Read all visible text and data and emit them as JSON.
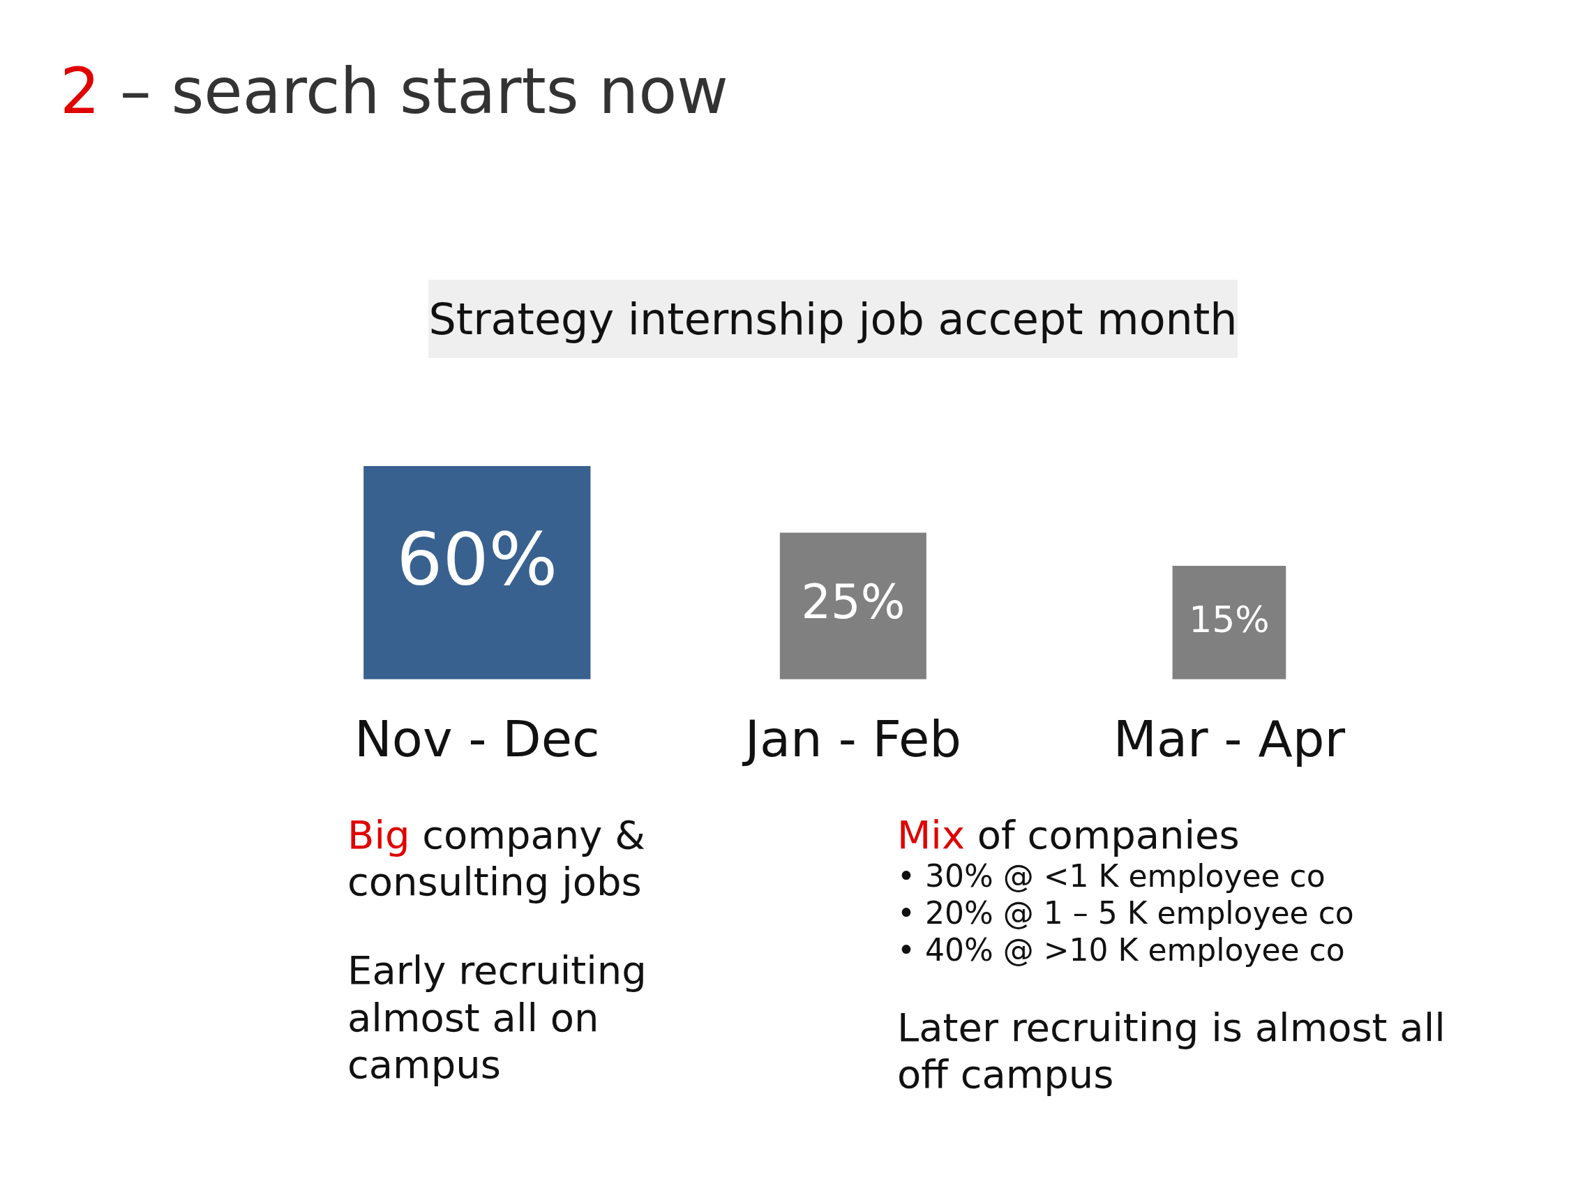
{
  "chart_data": {
    "type": "other",
    "title": "2 – search starts now",
    "subtitle": "Strategy internship job accept month",
    "categories": [
      "Nov - Dec",
      "Jan - Feb",
      "Mar - Apr"
    ],
    "values": [
      60,
      25,
      15
    ],
    "colors": [
      "#38618f",
      "#808080",
      "#808080"
    ],
    "value_labels": [
      "60%",
      "25%",
      "15%"
    ],
    "annotations": [
      "Big company & consulting jobs",
      "Early recruiting almost all on campus",
      "Mix of companies",
      "• 30% @ <1 K employee co",
      "• 20% @ 1 – 5 K employee co",
      "• 40% @ >10 K employee co",
      "Later recruiting is almost all off campus"
    ]
  }
}
